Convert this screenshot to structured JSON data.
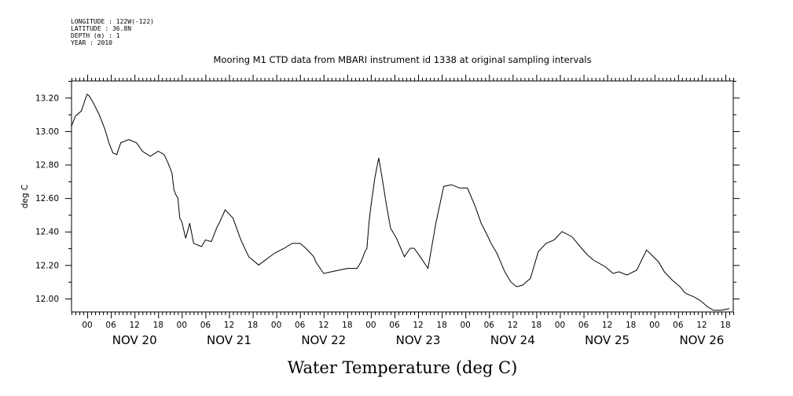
{
  "metadata": {
    "longitude": "LONGITUDE : 122W(-122)",
    "latitude": "LATITUDE : 36.8N",
    "depth": "DEPTH (m) : 1",
    "year": "YEAR : 2010"
  },
  "chart_data": {
    "type": "line",
    "title": "Mooring M1 CTD data from MBARI instrument id 1338 at original sampling intervals",
    "xlabel": "Water Temperature (deg C)",
    "ylabel": "deg C",
    "ylim": [
      11.92,
      13.3
    ],
    "xlim_hours": [
      -4,
      164
    ],
    "x_unit": "hours since NOV 20 00:00 (2010)",
    "y_ticks": [
      12.0,
      12.2,
      12.4,
      12.6,
      12.8,
      13.0,
      13.2
    ],
    "y_tick_labels": [
      "12.00",
      "12.20",
      "12.40",
      "12.60",
      "12.80",
      "13.00",
      "13.20"
    ],
    "x_hour_labels": [
      "00",
      "06",
      "12",
      "18"
    ],
    "days": [
      "NOV 20",
      "NOV 21",
      "NOV 22",
      "NOV 23",
      "NOV 24",
      "NOV 25",
      "NOV 26"
    ],
    "grid": false,
    "legend": "none",
    "line_color": "#000000",
    "series": [
      {
        "x": [
          -4.0,
          -3.0,
          -1.5,
          -0.5,
          0.0,
          0.5,
          1.5,
          3.0,
          4.5,
          5.5,
          6.5,
          7.5,
          8.5,
          10.5,
          12.5,
          14.0,
          16.0,
          18.0,
          19.5,
          20.5,
          21.5,
          22.0,
          22.5,
          23.0,
          23.5,
          24.0,
          25.0,
          26.0,
          27.0,
          28.0,
          29.0,
          30.0,
          31.5,
          33.0,
          33.5,
          35.0,
          37.0,
          39.0,
          41.0,
          43.5,
          47.5,
          50.0,
          52.0,
          54.0,
          55.5,
          57.5,
          58.0,
          60.0,
          62.0,
          64.0,
          66.0,
          68.5,
          69.5,
          70.5,
          71.0,
          71.5,
          72.0,
          73.0,
          74.0,
          75.0,
          76.0,
          77.0,
          78.5,
          80.5,
          82.0,
          83.0,
          84.5,
          86.5,
          88.5,
          90.5,
          92.5,
          94.5,
          96.5,
          98.5,
          100.0,
          101.5,
          102.5,
          104.0,
          106.0,
          107.5,
          109.0,
          110.5,
          112.5,
          114.5,
          116.5,
          118.5,
          120.5,
          123.0,
          125.5,
          127.0,
          128.5,
          131.5,
          132.5,
          133.5,
          135.0,
          137.0,
          139.5,
          142.0,
          145.0,
          146.5,
          148.5,
          150.5,
          151.5,
          152.0,
          153.0,
          154.0,
          155.5,
          156.5,
          157.5,
          159.0,
          161.0,
          163.0
        ],
        "y": [
          13.03,
          13.09,
          13.12,
          13.19,
          13.22,
          13.21,
          13.17,
          13.1,
          13.01,
          12.93,
          12.87,
          12.86,
          12.93,
          12.95,
          12.93,
          12.88,
          12.85,
          12.88,
          12.86,
          12.81,
          12.75,
          12.65,
          12.62,
          12.6,
          12.48,
          12.46,
          12.36,
          12.45,
          12.33,
          12.32,
          12.31,
          12.35,
          12.34,
          12.43,
          12.45,
          12.53,
          12.48,
          12.35,
          12.25,
          12.2,
          12.27,
          12.3,
          12.33,
          12.33,
          12.3,
          12.25,
          12.22,
          12.15,
          12.16,
          12.17,
          12.18,
          12.18,
          12.22,
          12.28,
          12.3,
          12.45,
          12.55,
          12.72,
          12.84,
          12.7,
          12.55,
          12.42,
          12.36,
          12.25,
          12.3,
          12.3,
          12.25,
          12.18,
          12.45,
          12.67,
          12.68,
          12.66,
          12.66,
          12.55,
          12.45,
          12.38,
          12.33,
          12.27,
          12.16,
          12.1,
          12.07,
          12.08,
          12.12,
          12.28,
          12.33,
          12.35,
          12.4,
          12.37,
          12.3,
          12.26,
          12.23,
          12.19,
          12.17,
          12.15,
          12.16,
          12.14,
          12.17,
          12.29,
          12.22,
          12.16,
          12.11,
          12.07,
          12.04,
          12.03,
          12.02,
          12.01,
          11.99,
          11.97,
          11.95,
          11.93,
          11.93,
          11.94
        ]
      }
    ]
  }
}
